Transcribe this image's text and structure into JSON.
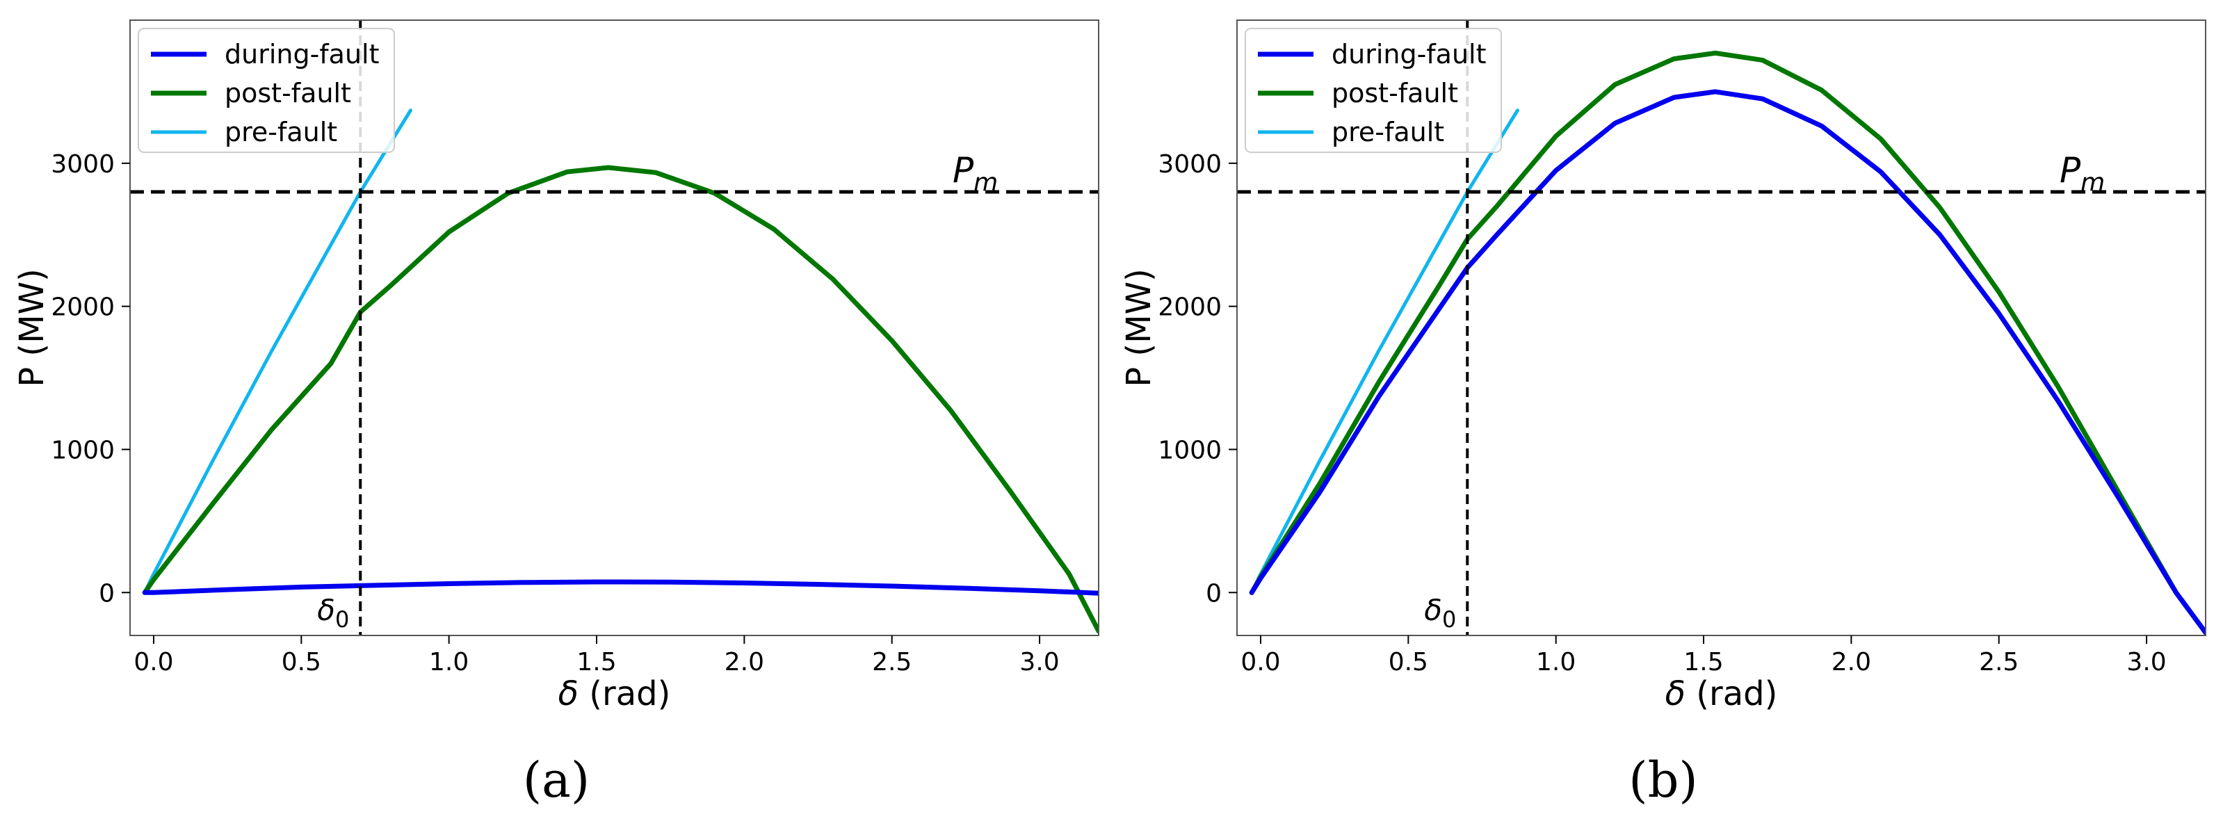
{
  "chart_data": [
    {
      "type": "line",
      "panel_label": "(a)",
      "xlabel_sym": "δ",
      "xlabel_unit": " (rad)",
      "ylabel": "P (MW)",
      "xlim": [
        -0.08,
        3.2
      ],
      "ylim": [
        -300,
        4000
      ],
      "xticks": [
        0.0,
        0.5,
        1.0,
        1.5,
        2.0,
        2.5,
        3.0
      ],
      "xtick_labels": [
        "0.0",
        "0.5",
        "1.0",
        "1.5",
        "2.0",
        "2.5",
        "3.0"
      ],
      "yticks": [
        0,
        1000,
        2000,
        3000
      ],
      "ytick_labels": [
        "0",
        "1000",
        "2000",
        "3000"
      ],
      "legend_position": "top-left",
      "series": [
        {
          "name": "during-fault",
          "color": "#0000ee",
          "x": [
            -0.03,
            0.0,
            0.25,
            0.5,
            0.7,
            1.0,
            1.25,
            1.5,
            1.75,
            2.0,
            2.25,
            2.5,
            2.75,
            3.0,
            3.12,
            3.2
          ],
          "y": [
            0,
            0,
            20,
            38,
            48,
            62,
            70,
            74,
            73,
            67,
            57,
            45,
            30,
            12,
            2,
            -5
          ]
        },
        {
          "name": "post-fault",
          "color": "#007700",
          "x": [
            -0.03,
            0.0,
            0.2,
            0.4,
            0.6,
            0.7,
            0.8,
            1.0,
            1.2,
            1.4,
            1.54,
            1.7,
            1.9,
            2.1,
            2.3,
            2.5,
            2.7,
            2.9,
            3.1,
            3.2
          ],
          "y": [
            0,
            90,
            620,
            1140,
            1600,
            1960,
            2140,
            2520,
            2790,
            2940,
            2970,
            2935,
            2790,
            2540,
            2190,
            1760,
            1270,
            710,
            130,
            -270
          ]
        },
        {
          "name": "pre-fault",
          "color": "#11b5ee",
          "x": [
            -0.03,
            0.0,
            0.2,
            0.4,
            0.6,
            0.7,
            0.87
          ],
          "y": [
            0,
            130,
            920,
            1690,
            2430,
            2800,
            3370
          ]
        }
      ],
      "hline": {
        "y": 2800,
        "label_sym": "P",
        "label_sub": "m"
      },
      "vline": {
        "x": 0.7,
        "label_sym": "δ",
        "label_sub": "0"
      }
    },
    {
      "type": "line",
      "panel_label": "(b)",
      "xlabel_sym": "δ",
      "xlabel_unit": " (rad)",
      "ylabel": "P (MW)",
      "xlim": [
        -0.08,
        3.2
      ],
      "ylim": [
        -300,
        4000
      ],
      "xticks": [
        0.0,
        0.5,
        1.0,
        1.5,
        2.0,
        2.5,
        3.0
      ],
      "xtick_labels": [
        "0.0",
        "0.5",
        "1.0",
        "1.5",
        "2.0",
        "2.5",
        "3.0"
      ],
      "yticks": [
        0,
        1000,
        2000,
        3000
      ],
      "ytick_labels": [
        "0",
        "1000",
        "2000",
        "3000"
      ],
      "legend_position": "top-left",
      "series": [
        {
          "name": "during-fault",
          "color": "#0000ee",
          "x": [
            -0.03,
            0.0,
            0.2,
            0.4,
            0.6,
            0.7,
            0.8,
            1.0,
            1.2,
            1.4,
            1.54,
            1.7,
            1.9,
            2.1,
            2.3,
            2.5,
            2.7,
            2.9,
            3.1,
            3.2
          ],
          "y": [
            0,
            100,
            700,
            1370,
            1970,
            2270,
            2500,
            2950,
            3280,
            3460,
            3500,
            3450,
            3260,
            2940,
            2500,
            1950,
            1340,
            680,
            0,
            -280
          ]
        },
        {
          "name": "post-fault",
          "color": "#007700",
          "x": [
            -0.03,
            0.0,
            0.2,
            0.4,
            0.6,
            0.7,
            0.8,
            1.0,
            1.2,
            1.4,
            1.54,
            1.7,
            1.9,
            2.1,
            2.3,
            2.5,
            2.7,
            2.9,
            3.1,
            3.2
          ],
          "y": [
            0,
            110,
            760,
            1470,
            2130,
            2470,
            2700,
            3190,
            3550,
            3730,
            3770,
            3720,
            3510,
            3170,
            2690,
            2100,
            1440,
            720,
            0,
            -280
          ]
        },
        {
          "name": "pre-fault",
          "color": "#11b5ee",
          "x": [
            -0.03,
            0.0,
            0.2,
            0.4,
            0.6,
            0.7,
            0.87
          ],
          "y": [
            0,
            130,
            920,
            1690,
            2430,
            2800,
            3370
          ]
        }
      ],
      "hline": {
        "y": 2800,
        "label_sym": "P",
        "label_sub": "m"
      },
      "vline": {
        "x": 0.7,
        "label_sym": "δ",
        "label_sub": "0"
      }
    }
  ]
}
